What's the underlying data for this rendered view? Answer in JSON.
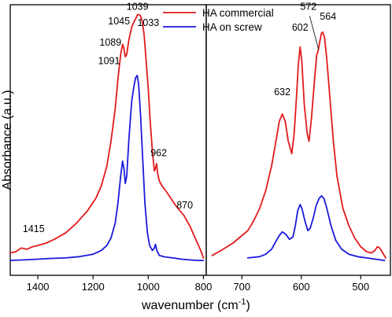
{
  "chart_data": {
    "type": "line",
    "xlabel": "wavenumber (cm",
    "xlabel_sup": "-1",
    "xlabel_end": ")",
    "ylabel": "Absorbance (a.u.)",
    "y_ticks_shown": false,
    "grid": false,
    "legend_position": "top-center",
    "x_axis_reversed": true,
    "panels": [
      {
        "id": "left",
        "xlim": [
          1500,
          790
        ],
        "ylim": [
          -0.07,
          1.02
        ],
        "x_ticks": [
          1400,
          1200,
          1000,
          800
        ],
        "x_tick_labels": [
          "1400",
          "1200",
          "1000",
          "800"
        ]
      },
      {
        "id": "right",
        "xlim": [
          760,
          450
        ],
        "ylim": [
          -0.07,
          1.02
        ],
        "x_ticks": [
          700,
          600,
          500
        ],
        "x_tick_labels": [
          "700",
          "600",
          "500"
        ]
      }
    ],
    "series": [
      {
        "name": "HA commercial",
        "color": "#e31a1c",
        "segments": [
          {
            "panel": "left",
            "points": [
              [
                1500,
                0.02
              ],
              [
                1480,
                0.025
              ],
              [
                1460,
                0.04
              ],
              [
                1440,
                0.035
              ],
              [
                1420,
                0.045
              ],
              [
                1400,
                0.05
              ],
              [
                1370,
                0.06
              ],
              [
                1340,
                0.075
              ],
              [
                1300,
                0.1
              ],
              [
                1260,
                0.14
              ],
              [
                1220,
                0.19
              ],
              [
                1190,
                0.24
              ],
              [
                1170,
                0.29
              ],
              [
                1150,
                0.37
              ],
              [
                1135,
                0.47
              ],
              [
                1120,
                0.6
              ],
              [
                1110,
                0.72
              ],
              [
                1100,
                0.82
              ],
              [
                1093,
                0.86
              ],
              [
                1089,
                0.85
              ],
              [
                1083,
                0.81
              ],
              [
                1078,
                0.82
              ],
              [
                1070,
                0.88
              ],
              [
                1060,
                0.93
              ],
              [
                1050,
                0.955
              ],
              [
                1045,
                0.965
              ],
              [
                1039,
                0.98
              ],
              [
                1033,
                0.98
              ],
              [
                1028,
                0.975
              ],
              [
                1022,
                0.955
              ],
              [
                1015,
                0.9
              ],
              [
                1008,
                0.8
              ],
              [
                1000,
                0.68
              ],
              [
                993,
                0.55
              ],
              [
                985,
                0.43
              ],
              [
                978,
                0.35
              ],
              [
                974,
                0.36
              ],
              [
                970,
                0.38
              ],
              [
                966,
                0.34
              ],
              [
                960,
                0.31
              ],
              [
                950,
                0.29
              ],
              [
                930,
                0.26
              ],
              [
                900,
                0.21
              ],
              [
                870,
                0.17
              ],
              [
                850,
                0.13
              ],
              [
                830,
                0.08
              ],
              [
                810,
                0.03
              ],
              [
                800,
                0.0
              ]
            ]
          },
          {
            "panel": "right",
            "points": [
              [
                750,
                0.01
              ],
              [
                735,
                0.03
              ],
              [
                715,
                0.06
              ],
              [
                700,
                0.09
              ],
              [
                690,
                0.11
              ],
              [
                680,
                0.15
              ],
              [
                670,
                0.2
              ],
              [
                660,
                0.27
              ],
              [
                650,
                0.37
              ],
              [
                642,
                0.48
              ],
              [
                637,
                0.55
              ],
              [
                632,
                0.58
              ],
              [
                627,
                0.55
              ],
              [
                622,
                0.47
              ],
              [
                616,
                0.42
              ],
              [
                612,
                0.5
              ],
              [
                608,
                0.65
              ],
              [
                605,
                0.78
              ],
              [
                602,
                0.85
              ],
              [
                599,
                0.79
              ],
              [
                595,
                0.62
              ],
              [
                590,
                0.5
              ],
              [
                587,
                0.47
              ],
              [
                583,
                0.56
              ],
              [
                578,
                0.71
              ],
              [
                574,
                0.82
              ],
              [
                572,
                0.83
              ],
              [
                569,
                0.87
              ],
              [
                566,
                0.905
              ],
              [
                564,
                0.91
              ],
              [
                561,
                0.89
              ],
              [
                557,
                0.8
              ],
              [
                552,
                0.65
              ],
              [
                546,
                0.47
              ],
              [
                540,
                0.33
              ],
              [
                530,
                0.2
              ],
              [
                520,
                0.13
              ],
              [
                510,
                0.08
              ],
              [
                500,
                0.045
              ],
              [
                490,
                0.025
              ],
              [
                482,
                0.02
              ],
              [
                476,
                0.03
              ],
              [
                472,
                0.045
              ],
              [
                468,
                0.04
              ],
              [
                464,
                0.025
              ],
              [
                458,
                0.0
              ]
            ]
          }
        ]
      },
      {
        "name": "HA on screw",
        "color": "#1a1adc",
        "segments": [
          {
            "panel": "left",
            "points": [
              [
                1500,
                -0.01
              ],
              [
                1450,
                -0.008
              ],
              [
                1400,
                -0.005
              ],
              [
                1350,
                -0.002
              ],
              [
                1300,
                0.0
              ],
              [
                1250,
                0.005
              ],
              [
                1200,
                0.015
              ],
              [
                1170,
                0.03
              ],
              [
                1150,
                0.05
              ],
              [
                1135,
                0.08
              ],
              [
                1120,
                0.14
              ],
              [
                1110,
                0.22
              ],
              [
                1100,
                0.33
              ],
              [
                1093,
                0.39
              ],
              [
                1088,
                0.36
              ],
              [
                1083,
                0.3
              ],
              [
                1078,
                0.33
              ],
              [
                1070,
                0.48
              ],
              [
                1060,
                0.63
              ],
              [
                1052,
                0.69
              ],
              [
                1046,
                0.725
              ],
              [
                1040,
                0.735
              ],
              [
                1035,
                0.7
              ],
              [
                1028,
                0.58
              ],
              [
                1020,
                0.4
              ],
              [
                1012,
                0.22
              ],
              [
                1003,
                0.1
              ],
              [
                995,
                0.05
              ],
              [
                985,
                0.03
              ],
              [
                978,
                0.04
              ],
              [
                974,
                0.055
              ],
              [
                969,
                0.03
              ],
              [
                960,
                0.01
              ],
              [
                940,
                0.004
              ],
              [
                910,
                0.0
              ],
              [
                880,
                -0.005
              ],
              [
                850,
                -0.008
              ],
              [
                820,
                -0.01
              ],
              [
                800,
                -0.01
              ]
            ]
          },
          {
            "panel": "right",
            "points": [
              [
                690,
                0.0
              ],
              [
                670,
                0.005
              ],
              [
                660,
                0.015
              ],
              [
                650,
                0.035
              ],
              [
                642,
                0.07
              ],
              [
                637,
                0.09
              ],
              [
                632,
                0.105
              ],
              [
                626,
                0.095
              ],
              [
                620,
                0.075
              ],
              [
                614,
                0.085
              ],
              [
                610,
                0.13
              ],
              [
                606,
                0.19
              ],
              [
                602,
                0.215
              ],
              [
                599,
                0.2
              ],
              [
                594,
                0.15
              ],
              [
                589,
                0.11
              ],
              [
                585,
                0.12
              ],
              [
                580,
                0.16
              ],
              [
                575,
                0.21
              ],
              [
                570,
                0.24
              ],
              [
                566,
                0.25
              ],
              [
                562,
                0.24
              ],
              [
                557,
                0.2
              ],
              [
                550,
                0.13
              ],
              [
                542,
                0.07
              ],
              [
                532,
                0.035
              ],
              [
                520,
                0.015
              ],
              [
                505,
                0.005
              ],
              [
                490,
                0.0
              ],
              [
                475,
                -0.005
              ],
              [
                460,
                -0.01
              ]
            ]
          }
        ]
      }
    ],
    "annotations": [
      {
        "panel": "left",
        "text": "1415",
        "x": 1415,
        "y": 0.105
      },
      {
        "panel": "left",
        "text": "1091",
        "x": 1142,
        "y": 0.78
      },
      {
        "panel": "left",
        "text": "1089",
        "x": 1137,
        "y": 0.855
      },
      {
        "panel": "left",
        "text": "1045",
        "x": 1106,
        "y": 0.94
      },
      {
        "panel": "left",
        "text": "1039",
        "x": 1039,
        "y": 1.0
      },
      {
        "panel": "left",
        "text": "1033",
        "x": 1000,
        "y": 0.935
      },
      {
        "panel": "left",
        "text": "962",
        "x": 962,
        "y": 0.41
      },
      {
        "panel": "left",
        "text": "870",
        "x": 868,
        "y": 0.2
      },
      {
        "panel": "right",
        "text": "632",
        "x": 632,
        "y": 0.655
      },
      {
        "panel": "right",
        "text": "602",
        "x": 602,
        "y": 0.915
      },
      {
        "panel": "right",
        "text": "572",
        "x": 588,
        "y": 1.0
      },
      {
        "panel": "right",
        "text": "564",
        "x": 555,
        "y": 0.96
      }
    ]
  }
}
